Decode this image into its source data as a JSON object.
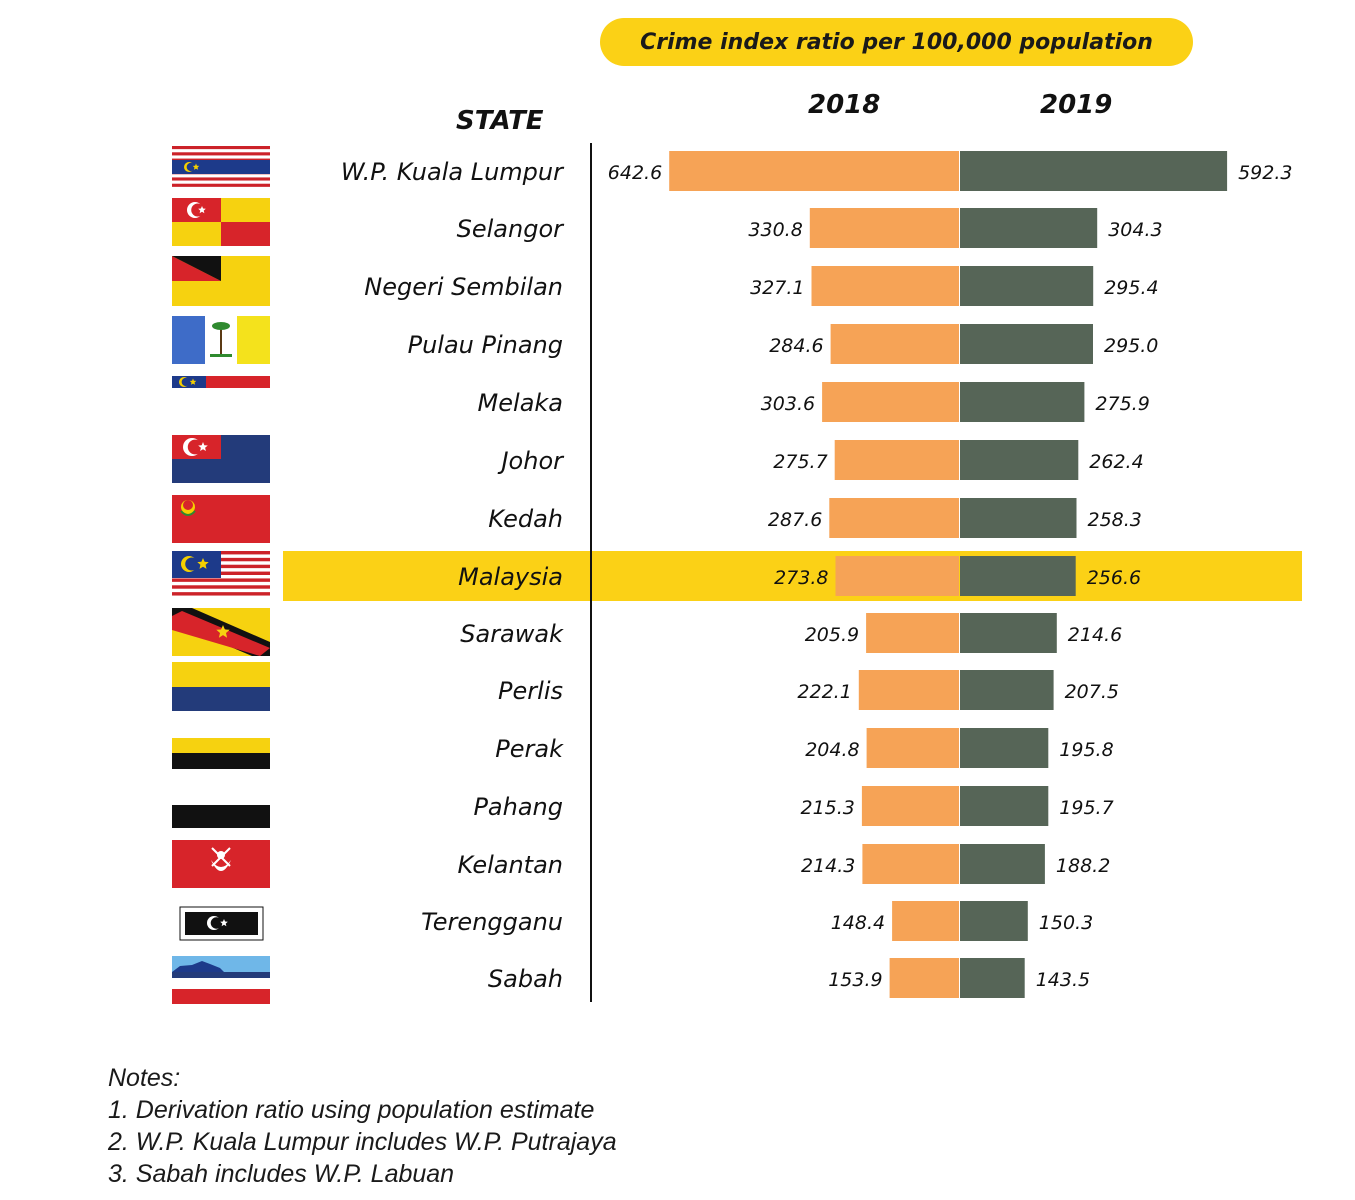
{
  "header": {
    "title": "Crime index ratio per 100,000 population",
    "state_label": "STATE",
    "year_left": "2018",
    "year_right": "2019"
  },
  "colors": {
    "accent_yellow": "#fbd116",
    "bar_2018": "#f6a356",
    "bar_2019": "#566557"
  },
  "chart_data": {
    "type": "bar",
    "orientation": "horizontal-diverging",
    "title": "Crime index ratio per 100,000 population",
    "category_label": "STATE",
    "highlight": "Malaysia",
    "categories": [
      "W.P. Kuala Lumpur",
      "Selangor",
      "Negeri Sembilan",
      "Pulau Pinang",
      "Melaka",
      "Johor",
      "Kedah",
      "Malaysia",
      "Sarawak",
      "Perlis",
      "Perak",
      "Pahang",
      "Kelantan",
      "Terengganu",
      "Sabah"
    ],
    "flags": [
      "kuala-lumpur-flag-icon",
      "selangor-flag-icon",
      "negeri-sembilan-flag-icon",
      "pulau-pinang-flag-icon",
      "melaka-flag-icon",
      "johor-flag-icon",
      "kedah-flag-icon",
      "malaysia-flag-icon",
      "sarawak-flag-icon",
      "perlis-flag-icon",
      "perak-flag-icon",
      "pahang-flag-icon",
      "kelantan-flag-icon",
      "terengganu-flag-icon",
      "sabah-flag-icon"
    ],
    "series": [
      {
        "name": "2018",
        "values": [
          642.6,
          330.8,
          327.1,
          284.6,
          303.6,
          275.7,
          287.6,
          273.8,
          205.9,
          222.1,
          204.8,
          215.3,
          214.3,
          148.4,
          153.9
        ]
      },
      {
        "name": "2019",
        "values": [
          592.3,
          304.3,
          295.4,
          295.0,
          275.9,
          262.4,
          258.3,
          256.6,
          214.6,
          207.5,
          195.8,
          195.7,
          188.2,
          150.3,
          143.5
        ]
      }
    ],
    "value_labels_2018": [
      "642.6",
      "330.8",
      "327.1",
      "284.6",
      "303.6",
      "275.7",
      "287.6",
      "273.8",
      "205.9",
      "222.1",
      "204.8",
      "215.3",
      "214.3",
      "148.4",
      "153.9"
    ],
    "value_labels_2019": [
      "592.3",
      "304.3",
      "295.4",
      "295.0",
      "275.9",
      "262.4",
      "258.3",
      "256.6",
      "214.6",
      "207.5",
      "195.8",
      "195.7",
      "188.2",
      "150.3",
      "143.5"
    ],
    "grid": false
  },
  "notes": {
    "heading": "Notes:",
    "items": [
      "1. Derivation ratio using population estimate",
      "2. W.P. Kuala Lumpur includes W.P. Putrajaya",
      "3. Sabah includes W.P. Labuan"
    ]
  }
}
